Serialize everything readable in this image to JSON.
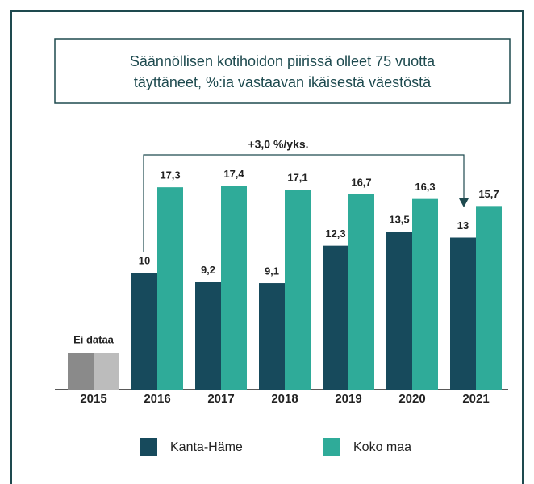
{
  "chart_data": {
    "type": "bar",
    "title": [
      "Säännöllisen kotihoidon piirissä olleet 75 vuotta",
      "täyttäneet, %:ia vastaavan ikäisestä väestöstä"
    ],
    "categories": [
      "2015",
      "2016",
      "2017",
      "2018",
      "2019",
      "2020",
      "2021"
    ],
    "series": [
      {
        "name": "Kanta-Häme",
        "color": "#174a5c",
        "values": [
          null,
          10,
          9.2,
          9.1,
          12.3,
          13.5,
          13
        ],
        "value_labels": [
          null,
          "10",
          "9,2",
          "9,1",
          "12,3",
          "13,5",
          "13"
        ]
      },
      {
        "name": "Koko maa",
        "color": "#2fab99",
        "values": [
          null,
          17.3,
          17.4,
          17.1,
          16.7,
          16.3,
          15.7
        ],
        "value_labels": [
          null,
          "17,3",
          "17,4",
          "17,1",
          "16,7",
          "16,3",
          "15,7"
        ]
      }
    ],
    "ylim": [
      0,
      20
    ],
    "annotations": [
      "+3,0 %/yks.",
      "Ei dataa"
    ]
  }
}
